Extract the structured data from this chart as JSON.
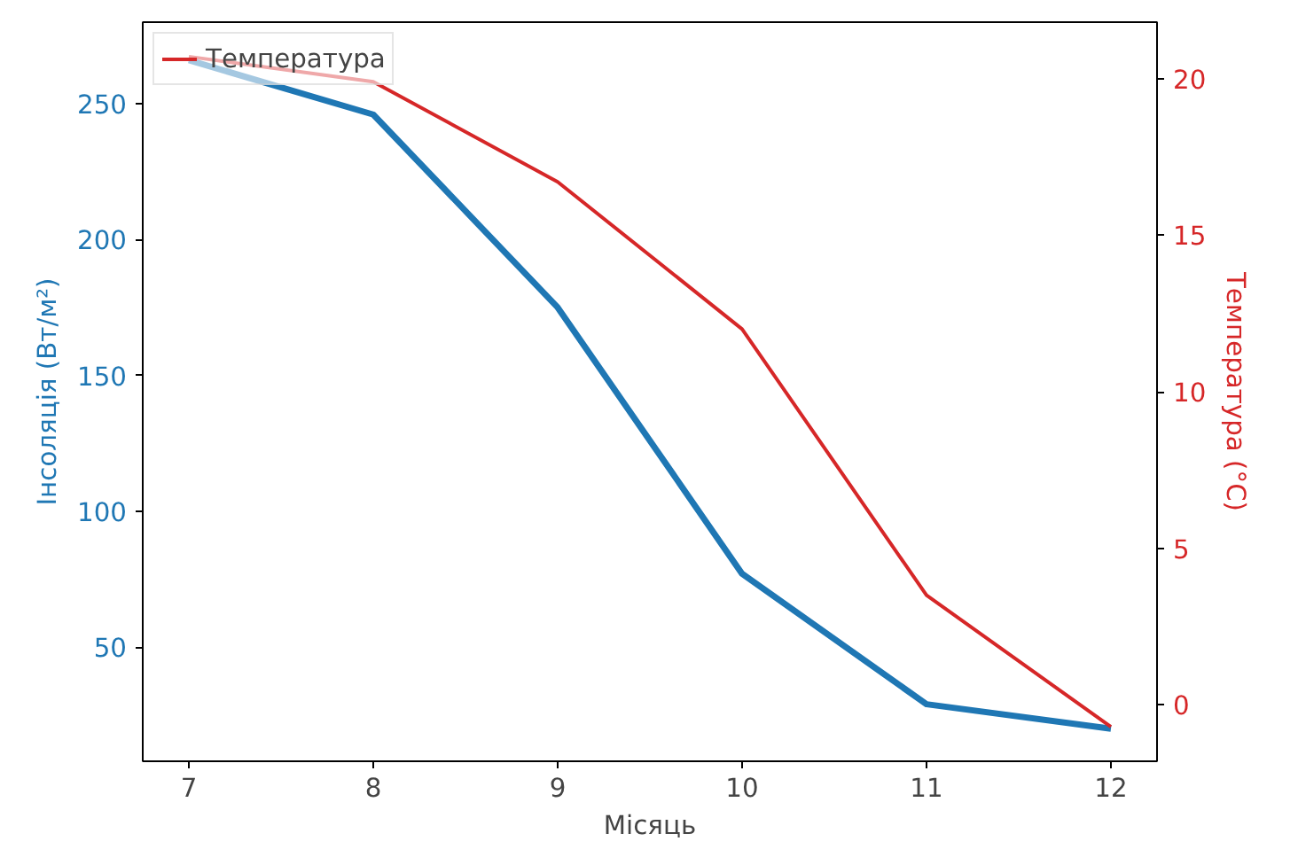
{
  "chart_data": {
    "type": "line",
    "xlabel": "Місяць",
    "ylabel": "Інсоляція (Вт/м²)",
    "y2label": "Температура (°C)",
    "x": [
      7,
      8,
      9,
      10,
      11,
      12
    ],
    "series": [
      {
        "color": "#1f77b4",
        "values": [
          266,
          246,
          175,
          77,
          29,
          20
        ]
      },
      {
        "name": "Температура",
        "color": "#d62728",
        "axis": "y2",
        "values": [
          20.7,
          19.9,
          16.7,
          12.0,
          3.5,
          -0.7
        ]
      }
    ],
    "xlim": [
      6.75,
      12.25
    ],
    "xticks": [
      7,
      8,
      9,
      10,
      11,
      12
    ],
    "ylim": [
      8,
      280
    ],
    "yticks": [
      50,
      100,
      150,
      200,
      250
    ],
    "y2lim": [
      -1.8,
      21.8
    ],
    "y2ticks": [
      0,
      5,
      10,
      15,
      20
    ],
    "grid": false,
    "legend": "top left",
    "marker": "none",
    "line_style": "solid"
  }
}
